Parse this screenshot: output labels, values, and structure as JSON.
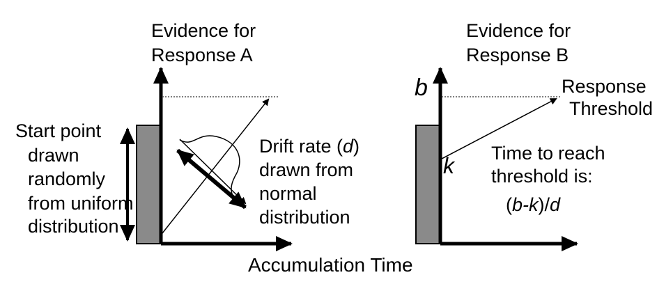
{
  "panel_a": {
    "ylabel": [
      "Evidence for",
      "Response A"
    ],
    "start_point_text": [
      "Start point",
      "drawn",
      "randomly",
      "from uniform",
      "distribution"
    ],
    "drift_text": {
      "line1_prefix": "Drift rate (",
      "line1_var": "d",
      "line1_suffix": ")",
      "line2": "drawn from",
      "line3": "normal",
      "line4": "distribution"
    }
  },
  "panel_b": {
    "ylabel": [
      "Evidence for",
      "Response B"
    ],
    "b_label": "b",
    "k_label": "k",
    "threshold_text": [
      "Response",
      "Threshold"
    ],
    "time_text": [
      "Time to",
      "reach",
      "threshold is:"
    ],
    "formula": {
      "open": "(",
      "var": "b-k",
      "close": ")/",
      "denominator": "d"
    }
  },
  "xlabel": "Accumulation Time",
  "colors": {
    "box_fill": "#8a8a8a",
    "ink": "#000000",
    "threshold_line": "#555555"
  }
}
